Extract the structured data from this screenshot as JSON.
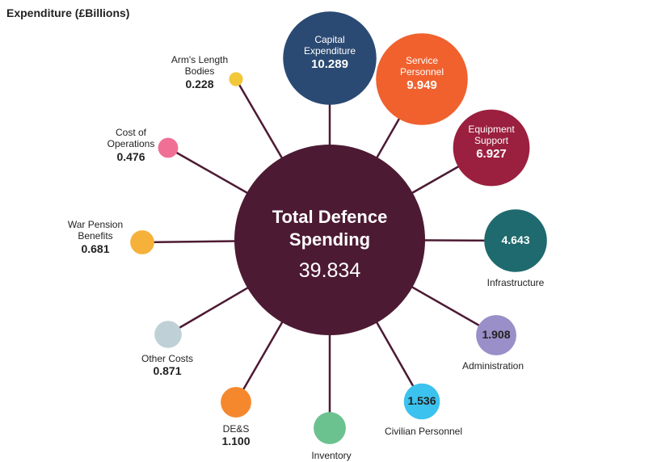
{
  "chart_data": {
    "type": "radial-bubble",
    "title": "Expenditure (£Billions)",
    "total": {
      "label": "Total Defence Spending",
      "value": 39.834
    },
    "categories": [
      "Capital Expenditure",
      "Service Personnel",
      "Equipment Support",
      "Infrastructure",
      "Administration",
      "Civilian Personnel",
      "Inventory",
      "DE&S",
      "Other Costs",
      "War Pension Benefits",
      "Cost of Operations",
      "Arm's Length Bodies"
    ],
    "values": [
      10.289,
      9.949,
      6.927,
      4.643,
      1.908,
      1.536,
      1.226,
      1.1,
      0.871,
      0.681,
      0.476,
      0.228
    ],
    "value_labels": [
      "10.289",
      "9.949",
      "6.927",
      "4.643",
      "1.908",
      "1.536",
      null,
      "1.100",
      "0.871",
      "0.681",
      "0.476",
      "0.228"
    ],
    "colors": [
      "#2b4a73",
      "#f0612e",
      "#9b1f3e",
      "#1f6a6e",
      "#9a8fc8",
      "#3cc2ee",
      "#6cc28f",
      "#f5882c",
      "#bfd0d6",
      "#f6b13a",
      "#f06f95",
      "#f2c73a"
    ],
    "center_color": "#4d1a33"
  }
}
